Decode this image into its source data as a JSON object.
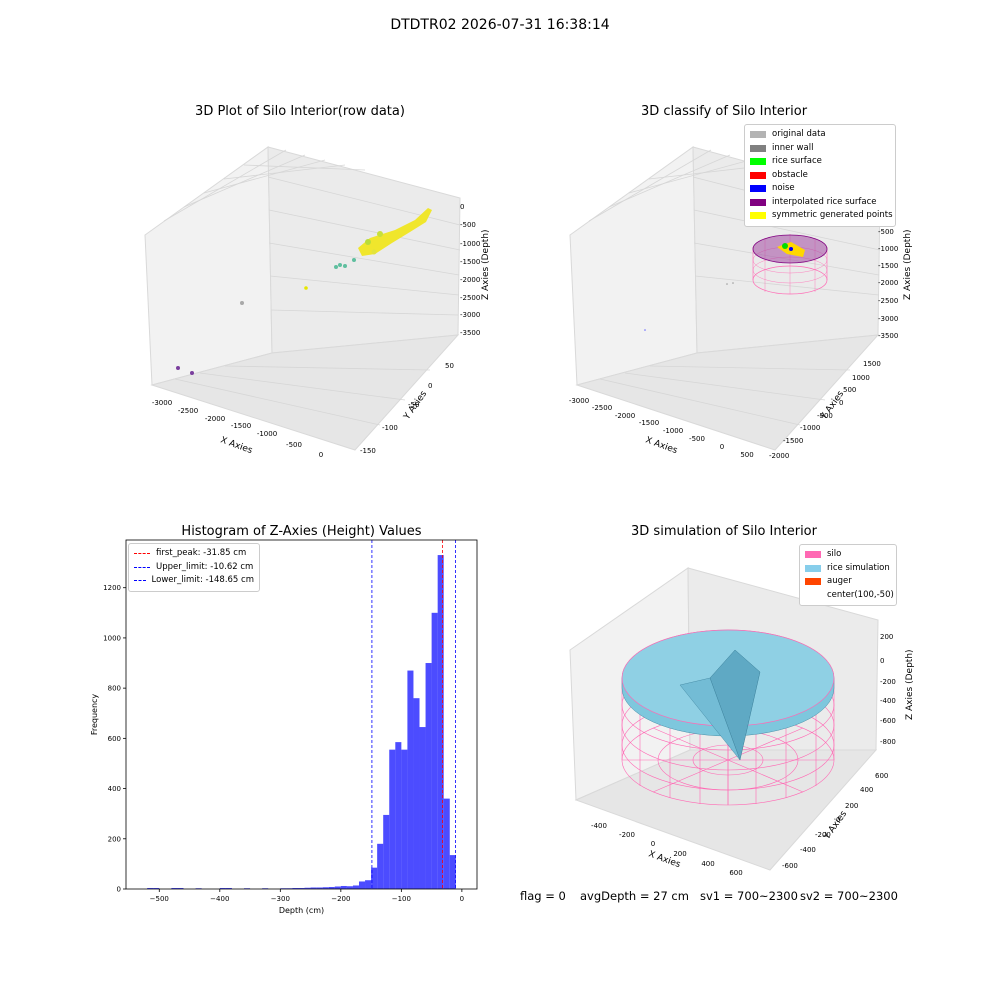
{
  "suptitle": "DTDTR02 2026-07-31 16:38:14",
  "status": {
    "flag": "flag = 0",
    "avg_depth": "avgDepth = 27 cm",
    "sv1": "sv1 = 700~2300",
    "sv2": "sv2 = 700~2300"
  },
  "panels": {
    "raw": {
      "title": "3D Plot of Silo Interior(row data)",
      "xlabel": "X Axies",
      "ylabel": "Y Axies",
      "zlabel": "Z Axies (Depth)",
      "xticks": [
        "-3000",
        "-2500",
        "-2000",
        "-1500",
        "-1000",
        "-500",
        "0"
      ],
      "yticks": [
        "50",
        "0",
        "-50",
        "-100",
        "-150"
      ],
      "zticks": [
        "0",
        "-500",
        "-1000",
        "-1500",
        "-2000",
        "-2500",
        "-3000",
        "-3500"
      ]
    },
    "classify": {
      "title": "3D classify of Silo Interior",
      "xlabel": "X Axies",
      "ylabel": "Y Axies",
      "zlabel": "Z Axies (Depth)",
      "xticks": [
        "-3000",
        "-2500",
        "-2000",
        "-1500",
        "-1000",
        "-500",
        "0",
        "500"
      ],
      "yticks": [
        "1500",
        "1000",
        "500",
        "0",
        "-500",
        "-1000",
        "-1500",
        "-2000"
      ],
      "zticks": [
        "0",
        "-500",
        "-1000",
        "-1500",
        "-2000",
        "-2500",
        "-3000",
        "-3500"
      ],
      "legend": [
        {
          "label": "original data",
          "color": "#b3b3b3"
        },
        {
          "label": "inner wall",
          "color": "#808080"
        },
        {
          "label": "rice surface",
          "color": "#00ff00"
        },
        {
          "label": "obstacle",
          "color": "#ff0000"
        },
        {
          "label": "noise",
          "color": "#0000ff"
        },
        {
          "label": "interpolated rice surface",
          "color": "#800080"
        },
        {
          "label": "symmetric generated points",
          "color": "#ffff00"
        }
      ]
    },
    "simulation": {
      "title": "3D simulation of Silo Interior",
      "xlabel": "X Axies",
      "ylabel": "Y Axies",
      "zlabel": "Z Axies (Depth)",
      "xticks": [
        "-400",
        "-200",
        "0",
        "200",
        "400",
        "600"
      ],
      "yticks": [
        "600",
        "400",
        "200",
        "0",
        "-200",
        "-400",
        "-600"
      ],
      "zticks": [
        "200",
        "0",
        "-200",
        "-400",
        "-600",
        "-800"
      ],
      "legend": [
        {
          "label": "silo",
          "color": "#ff69b4"
        },
        {
          "label": "rice simulation",
          "color": "#87ceeb"
        },
        {
          "label": "auger",
          "color": "#ff4500"
        },
        {
          "label": "center(100,-50)",
          "color": ""
        }
      ]
    }
  },
  "chart_data": {
    "type": "bar",
    "title": "Histogram of Z-Axies (Height) Values",
    "xlabel": "Depth (cm)",
    "ylabel": "Frequency",
    "xlim": [
      -555,
      25
    ],
    "ylim": [
      0,
      1390
    ],
    "xticks": [
      -500,
      -400,
      -300,
      -200,
      -100,
      0
    ],
    "yticks": [
      0,
      200,
      400,
      600,
      800,
      1000,
      1200
    ],
    "bar_color": "#0000ff",
    "bin_width": 10,
    "bins": [
      {
        "x": -515,
        "value": 4
      },
      {
        "x": -505,
        "value": 4
      },
      {
        "x": -475,
        "value": 4
      },
      {
        "x": -465,
        "value": 4
      },
      {
        "x": -435,
        "value": 3
      },
      {
        "x": -395,
        "value": 4
      },
      {
        "x": -385,
        "value": 4
      },
      {
        "x": -355,
        "value": 3
      },
      {
        "x": -325,
        "value": 3
      },
      {
        "x": -295,
        "value": 3
      },
      {
        "x": -285,
        "value": 3
      },
      {
        "x": -275,
        "value": 4
      },
      {
        "x": -265,
        "value": 4
      },
      {
        "x": -255,
        "value": 5
      },
      {
        "x": -245,
        "value": 6
      },
      {
        "x": -235,
        "value": 6
      },
      {
        "x": -225,
        "value": 7
      },
      {
        "x": -215,
        "value": 8
      },
      {
        "x": -205,
        "value": 10
      },
      {
        "x": -195,
        "value": 12
      },
      {
        "x": -185,
        "value": 11
      },
      {
        "x": -175,
        "value": 14
      },
      {
        "x": -165,
        "value": 30
      },
      {
        "x": -155,
        "value": 35
      },
      {
        "x": -145,
        "value": 85
      },
      {
        "x": -135,
        "value": 180
      },
      {
        "x": -125,
        "value": 295
      },
      {
        "x": -115,
        "value": 555
      },
      {
        "x": -105,
        "value": 585
      },
      {
        "x": -95,
        "value": 555
      },
      {
        "x": -85,
        "value": 870
      },
      {
        "x": -75,
        "value": 760
      },
      {
        "x": -65,
        "value": 645
      },
      {
        "x": -55,
        "value": 900
      },
      {
        "x": -45,
        "value": 1100
      },
      {
        "x": -35,
        "value": 1330
      },
      {
        "x": -25,
        "value": 360
      },
      {
        "x": -15,
        "value": 135
      }
    ],
    "vlines": [
      {
        "label": "first_peak: -31.85 cm",
        "x": -31.85,
        "color": "#ff0000"
      },
      {
        "label": "Upper_limit: -10.62 cm",
        "x": -10.62,
        "color": "#0000ff"
      },
      {
        "label": "Lower_limit: -148.65 cm",
        "x": -148.65,
        "color": "#0000ff"
      }
    ]
  }
}
